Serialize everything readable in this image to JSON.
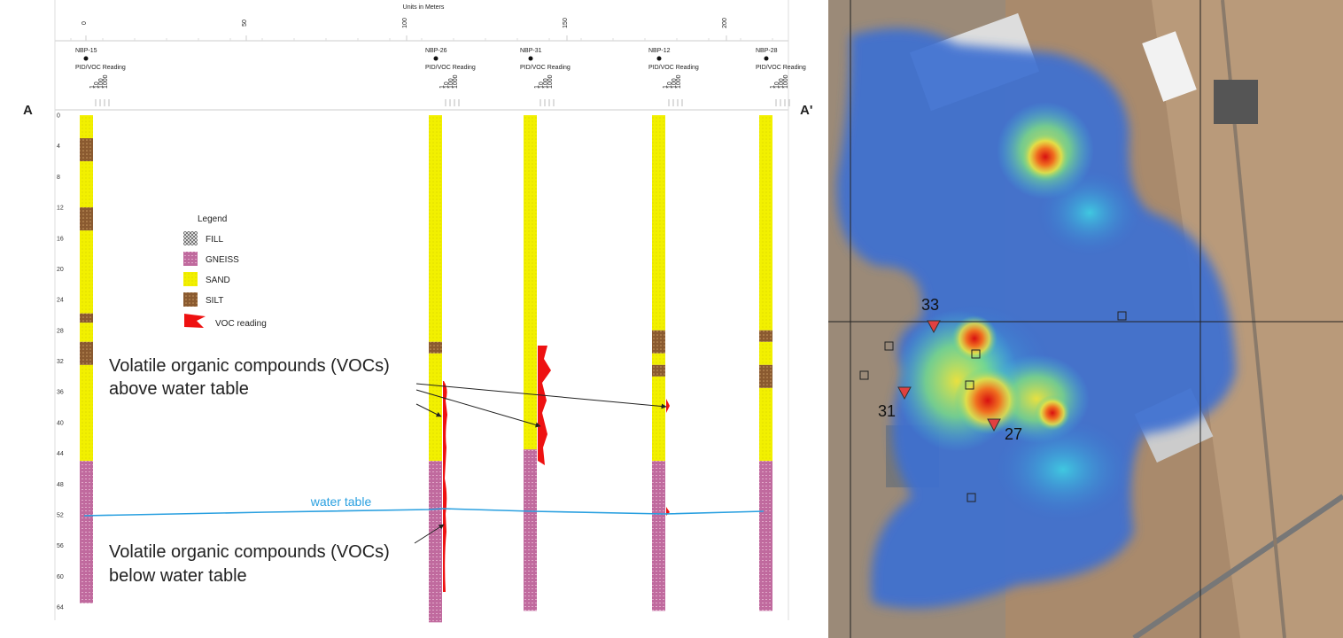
{
  "cross_section": {
    "scale_title": "Units in Meters",
    "scale_labels": [
      "0",
      "50",
      "100",
      "150",
      "200"
    ],
    "section_start": "A",
    "section_end": "A'",
    "depth_labels": [
      0,
      4,
      8,
      12,
      16,
      20,
      24,
      28,
      32,
      36,
      40,
      44,
      48,
      52,
      56,
      60,
      64
    ],
    "borings": [
      {
        "name": "NBP-15",
        "reading_label": "PID/VOC Reading",
        "reading_scale": [
          "1",
          "10",
          "100",
          "1000"
        ]
      },
      {
        "name": "NBP-26",
        "reading_label": "PID/VOC Reading",
        "reading_scale": [
          "1",
          "10",
          "100",
          "1000"
        ]
      },
      {
        "name": "NBP-31",
        "reading_label": "PID/VOC Reading",
        "reading_scale": [
          "1",
          "10",
          "100",
          "1000"
        ]
      },
      {
        "name": "NBP-12",
        "reading_label": "PID/VOC Reading",
        "reading_scale": [
          "1",
          "10",
          "100",
          "1000"
        ]
      },
      {
        "name": "NBP-28",
        "reading_label": "PID/VOC Reading",
        "reading_scale": [
          "1",
          "10",
          "100",
          "1000"
        ]
      }
    ],
    "legend": {
      "title": "Legend",
      "items": [
        "FILL",
        "GNEISS",
        "SAND",
        "SILT",
        "VOC reading"
      ]
    },
    "water_table_label": "water table",
    "annotations": [
      {
        "lines": [
          "Volatile organic compounds (VOCs)",
          "above water table"
        ]
      },
      {
        "lines": [
          "Volatile organic compounds (VOCs)",
          "below water table"
        ]
      }
    ]
  },
  "map": {
    "labels": [
      "33",
      "31",
      "27"
    ]
  }
}
